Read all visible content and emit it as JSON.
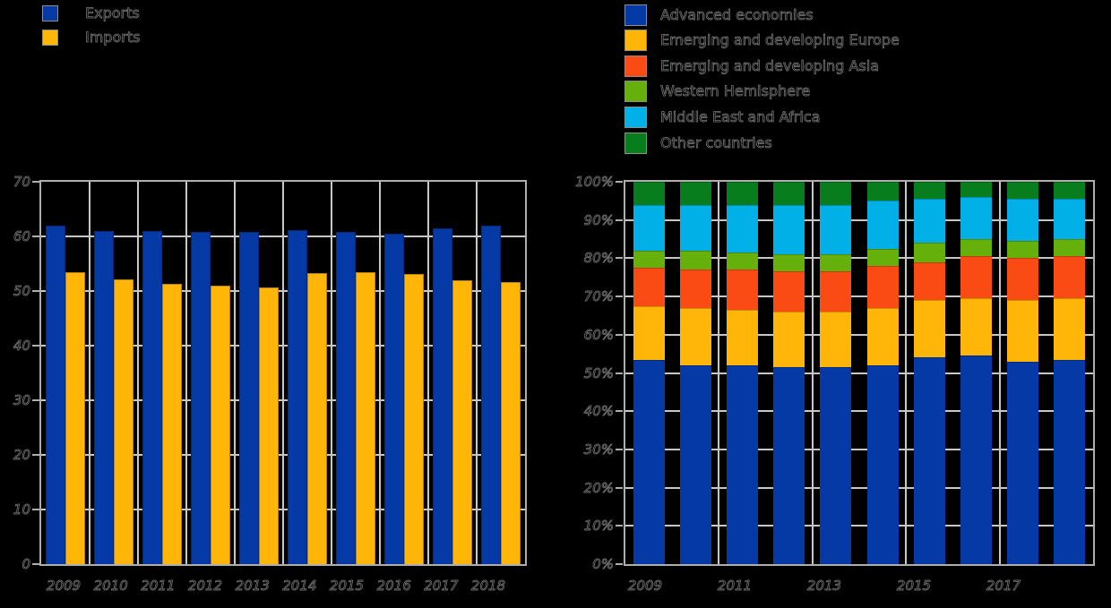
{
  "background_color": "#000000",
  "colors": {
    "grid": "#c7c7c7",
    "axis_frame": "#aeaeae",
    "text_outline": "#7d7d7d"
  },
  "chart_data": [
    {
      "id": "trade-volume",
      "type": "bar",
      "title": "",
      "xlabel": "",
      "ylabel": "",
      "ylim": [
        0,
        70
      ],
      "ytick_step": 10,
      "grid": true,
      "legend_position": "top-left",
      "categories": [
        "2009",
        "2010",
        "2011",
        "2012",
        "2013",
        "2014",
        "2015",
        "2016",
        "2017",
        "2018"
      ],
      "xtick_labels": [
        "2009",
        "2010",
        "2011",
        "2012",
        "2013",
        "2014",
        "2015",
        "2016",
        "2017",
        "2018"
      ],
      "ytick_labels": [
        "0",
        "10",
        "20",
        "30",
        "40",
        "50",
        "60",
        "70"
      ],
      "series": [
        {
          "name": "Exports",
          "color": "#0539a6",
          "values": [
            62,
            61,
            61,
            60.8,
            60.9,
            61.2,
            60.8,
            60.5,
            61.5,
            62
          ]
        },
        {
          "name": "Imports",
          "color": "#ffb608",
          "values": [
            53.4,
            52.1,
            51.3,
            51,
            50.7,
            53.3,
            53.5,
            53.1,
            52,
            51.6
          ]
        }
      ]
    },
    {
      "id": "partner-shares",
      "type": "stacked-bar-100",
      "title": "",
      "xlabel": "",
      "ylabel": "",
      "ylim": [
        0,
        100
      ],
      "ytick_step": 10,
      "ytick_suffix": "%",
      "grid": true,
      "legend_position": "top-left",
      "categories": [
        "2009",
        "2010",
        "2011",
        "2012",
        "2013",
        "2014",
        "2015",
        "2016",
        "2017",
        "2018"
      ],
      "xtick_labels": [
        "2009",
        "2011",
        "2013",
        "2015",
        "2017"
      ],
      "ytick_labels": [
        "0%",
        "10%",
        "20%",
        "30%",
        "40%",
        "50%",
        "60%",
        "70%",
        "80%",
        "90%",
        "100%"
      ],
      "series": [
        {
          "name": "Advanced economies",
          "color": "#0539a6",
          "values": [
            53.5,
            52,
            52,
            51.5,
            51.5,
            52,
            54,
            54.5,
            53,
            53.5
          ]
        },
        {
          "name": "Emerging and developing Europe",
          "color": "#ffb608",
          "values": [
            14,
            15,
            14.5,
            14.5,
            14.5,
            15,
            15,
            15,
            16,
            16
          ]
        },
        {
          "name": "Emerging and developing Asia",
          "color": "#fa4b14",
          "values": [
            10,
            10,
            10.5,
            10.5,
            10.5,
            11,
            10,
            11,
            11,
            11
          ]
        },
        {
          "name": "Western Hemisphere",
          "color": "#66b00c",
          "values": [
            4.5,
            5,
            4.5,
            4.5,
            4.5,
            4.5,
            5,
            4.5,
            4.5,
            4.5
          ]
        },
        {
          "name": "Middle East and Africa",
          "color": "#00b0e6",
          "values": [
            12,
            12,
            12.5,
            13,
            13,
            12.5,
            11.5,
            11,
            11,
            10.5
          ]
        },
        {
          "name": "Other countries",
          "color": "#087d1e",
          "values": [
            6,
            6,
            6,
            6,
            6,
            5,
            4.5,
            4,
            4.5,
            4.5
          ]
        }
      ]
    }
  ]
}
